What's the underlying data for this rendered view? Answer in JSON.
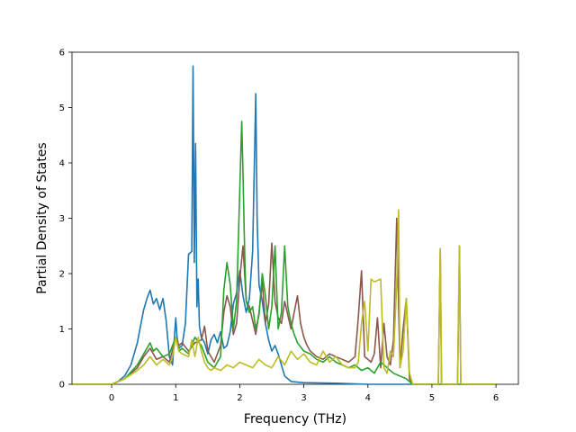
{
  "chart_data": {
    "type": "line",
    "xlabel": "Frequency (THz)",
    "ylabel": "Partial Density of States",
    "xlim": [
      -0.62,
      6.35
    ],
    "ylim": [
      0,
      6
    ],
    "xticks": [
      0,
      1,
      2,
      3,
      4,
      5,
      6
    ],
    "yticks": [
      0,
      1,
      2,
      3,
      4,
      5,
      6
    ],
    "grid": false,
    "legend": "none",
    "series": [
      {
        "color": "#1f77b4",
        "x": [
          -0.6,
          0.0,
          0.1,
          0.2,
          0.3,
          0.4,
          0.45,
          0.5,
          0.55,
          0.6,
          0.65,
          0.7,
          0.75,
          0.8,
          0.85,
          0.9,
          0.95,
          1.0,
          1.02,
          1.05,
          1.1,
          1.15,
          1.2,
          1.25,
          1.27,
          1.29,
          1.31,
          1.33,
          1.35,
          1.37,
          1.4,
          1.45,
          1.5,
          1.55,
          1.6,
          1.65,
          1.7,
          1.75,
          1.8,
          1.85,
          1.9,
          1.95,
          2.0,
          2.05,
          2.1,
          2.15,
          2.2,
          2.25,
          2.27,
          2.3,
          2.35,
          2.4,
          2.45,
          2.5,
          2.55,
          2.6,
          2.65,
          2.7,
          2.8,
          3.0,
          3.5,
          4.0,
          6.0
        ],
        "y": [
          0,
          0,
          0.05,
          0.15,
          0.35,
          0.75,
          1.05,
          1.35,
          1.55,
          1.7,
          1.45,
          1.55,
          1.35,
          1.55,
          1.15,
          0.5,
          0.35,
          1.2,
          0.85,
          0.65,
          0.7,
          1.1,
          2.35,
          2.4,
          5.75,
          2.2,
          4.35,
          1.4,
          1.9,
          1.05,
          0.85,
          0.75,
          0.55,
          0.8,
          0.9,
          0.75,
          0.95,
          0.65,
          0.7,
          0.95,
          1.45,
          1.65,
          2.05,
          1.6,
          1.3,
          1.55,
          2.4,
          5.25,
          3.0,
          1.8,
          1.5,
          1.1,
          0.8,
          0.6,
          0.7,
          0.55,
          0.35,
          0.15,
          0.05,
          0.03,
          0.02,
          0,
          0
        ]
      },
      {
        "color": "#8c564b",
        "x": [
          -0.6,
          0.0,
          0.2,
          0.4,
          0.5,
          0.6,
          0.7,
          0.8,
          0.9,
          1.0,
          1.05,
          1.1,
          1.2,
          1.3,
          1.4,
          1.45,
          1.5,
          1.6,
          1.7,
          1.75,
          1.8,
          1.85,
          1.9,
          1.95,
          2.0,
          2.05,
          2.1,
          2.15,
          2.2,
          2.25,
          2.3,
          2.35,
          2.4,
          2.45,
          2.5,
          2.55,
          2.6,
          2.65,
          2.7,
          2.75,
          2.8,
          2.85,
          2.9,
          2.95,
          3.0,
          3.05,
          3.1,
          3.2,
          3.3,
          3.4,
          3.5,
          3.6,
          3.7,
          3.8,
          3.85,
          3.9,
          3.95,
          4.0,
          4.05,
          4.1,
          4.15,
          4.2,
          4.25,
          4.3,
          4.35,
          4.4,
          4.45,
          4.5,
          4.55,
          4.6,
          4.65,
          4.7,
          4.8,
          5.0,
          5.1,
          5.13,
          5.15,
          5.2,
          5.4,
          5.43,
          5.45,
          5.5,
          6.0
        ],
        "y": [
          0,
          0,
          0.1,
          0.3,
          0.5,
          0.65,
          0.45,
          0.5,
          0.4,
          0.85,
          0.7,
          0.75,
          0.6,
          0.75,
          0.8,
          1.05,
          0.6,
          0.4,
          0.7,
          1.3,
          1.6,
          1.4,
          0.9,
          1.1,
          1.9,
          2.5,
          1.5,
          1.4,
          1.15,
          0.9,
          1.3,
          1.85,
          1.1,
          1.45,
          2.55,
          1.5,
          1.2,
          1.1,
          1.5,
          1.25,
          1.0,
          1.3,
          1.6,
          1.1,
          0.85,
          0.7,
          0.6,
          0.5,
          0.45,
          0.55,
          0.5,
          0.45,
          0.4,
          0.5,
          1.2,
          2.05,
          0.5,
          0.45,
          0.4,
          0.55,
          1.2,
          0.3,
          1.1,
          0.5,
          0.35,
          0.8,
          3.0,
          0.3,
          1.0,
          1.55,
          0.1,
          0,
          0,
          0,
          0,
          2.45,
          0,
          0,
          0,
          2.5,
          0,
          0,
          0
        ]
      },
      {
        "color": "#2ca02c",
        "x": [
          -0.6,
          0.0,
          0.2,
          0.4,
          0.5,
          0.6,
          0.65,
          0.7,
          0.8,
          0.9,
          1.0,
          1.05,
          1.1,
          1.2,
          1.3,
          1.4,
          1.5,
          1.6,
          1.7,
          1.75,
          1.8,
          1.85,
          1.9,
          1.95,
          2.0,
          2.03,
          2.05,
          2.08,
          2.1,
          2.15,
          2.2,
          2.25,
          2.3,
          2.35,
          2.4,
          2.45,
          2.5,
          2.55,
          2.6,
          2.65,
          2.7,
          2.75,
          2.8,
          2.85,
          2.9,
          3.0,
          3.1,
          3.2,
          3.3,
          3.4,
          3.5,
          3.6,
          3.7,
          3.8,
          3.9,
          4.0,
          4.1,
          4.2,
          4.3,
          4.4,
          4.5,
          4.6,
          4.7,
          5.0,
          6.0
        ],
        "y": [
          0,
          0,
          0.1,
          0.35,
          0.55,
          0.75,
          0.6,
          0.65,
          0.5,
          0.55,
          0.85,
          0.6,
          0.65,
          0.55,
          0.85,
          0.7,
          0.4,
          0.3,
          0.5,
          1.7,
          2.2,
          1.8,
          1.0,
          1.5,
          3.5,
          4.75,
          3.8,
          2.2,
          1.5,
          1.3,
          1.4,
          1.0,
          1.25,
          2.0,
          1.6,
          1.0,
          1.4,
          2.5,
          1.0,
          1.3,
          2.5,
          1.4,
          1.1,
          0.9,
          0.75,
          0.6,
          0.55,
          0.45,
          0.4,
          0.5,
          0.4,
          0.35,
          0.3,
          0.35,
          0.25,
          0.3,
          0.2,
          0.4,
          0.3,
          0.2,
          0.15,
          0.1,
          0,
          0,
          0
        ]
      },
      {
        "color": "#bcbd22",
        "x": [
          -0.6,
          0.0,
          0.2,
          0.4,
          0.5,
          0.6,
          0.7,
          0.8,
          0.9,
          0.95,
          1.0,
          1.05,
          1.1,
          1.2,
          1.25,
          1.3,
          1.35,
          1.4,
          1.45,
          1.5,
          1.55,
          1.6,
          1.7,
          1.8,
          1.9,
          2.0,
          2.1,
          2.2,
          2.3,
          2.4,
          2.5,
          2.6,
          2.7,
          2.8,
          2.9,
          3.0,
          3.1,
          3.2,
          3.3,
          3.4,
          3.5,
          3.6,
          3.7,
          3.8,
          3.85,
          3.9,
          3.95,
          4.0,
          4.05,
          4.1,
          4.2,
          4.25,
          4.3,
          4.35,
          4.4,
          4.45,
          4.48,
          4.5,
          4.55,
          4.6,
          4.65,
          4.7,
          4.8,
          5.0,
          5.1,
          5.13,
          5.15,
          5.2,
          5.4,
          5.43,
          5.45,
          5.5,
          6.0
        ],
        "y": [
          0,
          0,
          0.1,
          0.25,
          0.35,
          0.5,
          0.35,
          0.45,
          0.35,
          0.5,
          0.85,
          0.6,
          0.55,
          0.5,
          0.8,
          0.5,
          0.85,
          0.6,
          0.4,
          0.3,
          0.25,
          0.3,
          0.25,
          0.35,
          0.3,
          0.4,
          0.35,
          0.3,
          0.45,
          0.35,
          0.3,
          0.5,
          0.35,
          0.6,
          0.45,
          0.55,
          0.4,
          0.35,
          0.6,
          0.4,
          0.5,
          0.35,
          0.3,
          0.3,
          0.4,
          1.1,
          1.5,
          0.6,
          1.9,
          1.85,
          1.9,
          0.3,
          0.2,
          0.6,
          0.5,
          1.8,
          3.15,
          0.3,
          0.6,
          1.55,
          0.2,
          0,
          0,
          0,
          0,
          2.45,
          0,
          0,
          0,
          2.5,
          0,
          0,
          0
        ]
      }
    ]
  }
}
